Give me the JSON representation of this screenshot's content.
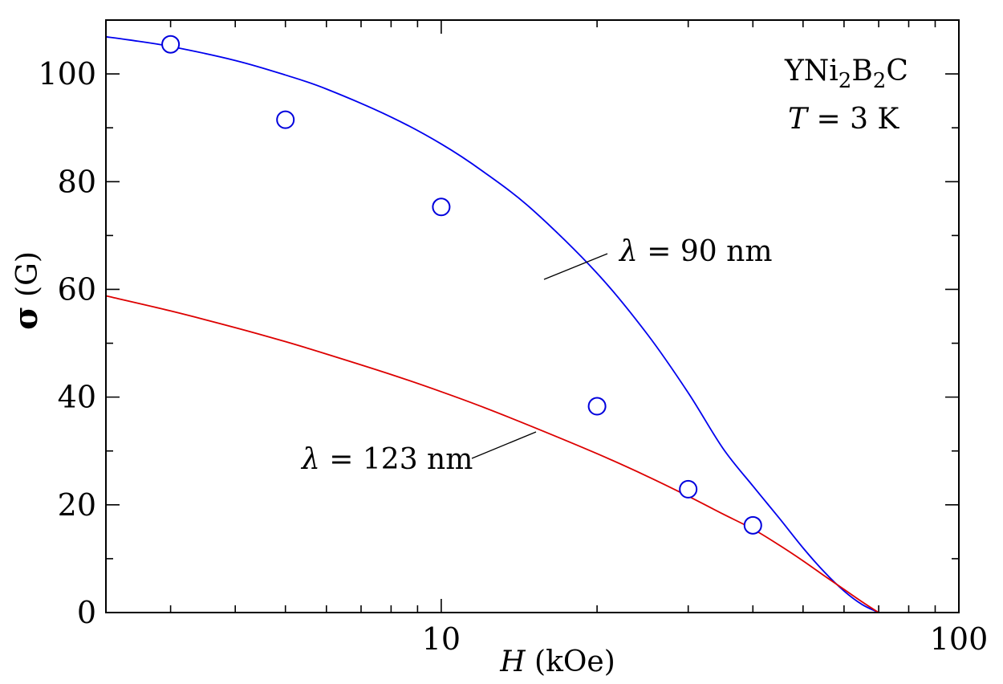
{
  "chart_data": {
    "type": "scatter",
    "xlabel": {
      "var": "H",
      "unit": " (kOe)"
    },
    "ylabel": {
      "var": "σ",
      "unit": " (G)"
    },
    "x_scale": "log",
    "xlim": [
      2.25,
      100
    ],
    "ylim": [
      0,
      110
    ],
    "x_ticks_major": [
      10,
      100
    ],
    "x_tick_labels": [
      "10",
      "100"
    ],
    "x_ticks_minor": [
      3,
      4,
      5,
      6,
      7,
      8,
      9,
      20,
      30,
      40,
      50,
      60,
      70,
      80,
      90
    ],
    "y_ticks_major": [
      0,
      20,
      40,
      60,
      80,
      100
    ],
    "y_tick_labels": [
      "0",
      "20",
      "40",
      "60",
      "80",
      "100"
    ],
    "y_ticks_minor": [
      10,
      30,
      50,
      70,
      90
    ],
    "grid": false,
    "points": {
      "x": [
        3,
        5,
        10,
        20,
        30,
        40
      ],
      "y": [
        105.5,
        91.5,
        75.3,
        38.3,
        22.9,
        16.2
      ],
      "color": "#0000dd",
      "marker": "open-circle"
    },
    "series": [
      {
        "key": "fit-90",
        "color": "#0000ee",
        "x": [
          2.25,
          2.5,
          3,
          4,
          5,
          6,
          8,
          10,
          12,
          15,
          20,
          25,
          30,
          35,
          40,
          45,
          50,
          55,
          60,
          65,
          70
        ],
        "y": [
          106.9,
          106.3,
          105.1,
          102.5,
          99.8,
          97.2,
          92.0,
          87.0,
          82.0,
          74.8,
          63.0,
          51.7,
          40.8,
          30.5,
          23.5,
          17.5,
          12.0,
          7.5,
          4.0,
          1.5,
          0
        ]
      },
      {
        "key": "fit-123",
        "color": "#dd0000",
        "x": [
          2.25,
          3,
          4,
          5,
          6,
          8,
          10,
          12,
          15,
          20,
          25,
          30,
          35,
          40,
          45,
          50,
          55,
          60,
          65,
          70
        ],
        "y": [
          58.8,
          56.0,
          52.9,
          50.3,
          48.0,
          44.2,
          41.0,
          38.2,
          34.5,
          29.5,
          25.3,
          21.6,
          18.3,
          15.5,
          12.5,
          9.6,
          6.8,
          4.3,
          2.0,
          0
        ]
      }
    ],
    "annotations": {
      "material": {
        "base": "YNi",
        "sub1": "2",
        "mid": "B",
        "sub2": "2",
        "end": "C"
      },
      "temperature": {
        "var": "T",
        "rest": " = 3 K"
      },
      "label_90": {
        "sym": "λ",
        "rest": " = 90 nm"
      },
      "label_123": {
        "sym": "λ",
        "rest": " = 123 nm"
      }
    }
  }
}
